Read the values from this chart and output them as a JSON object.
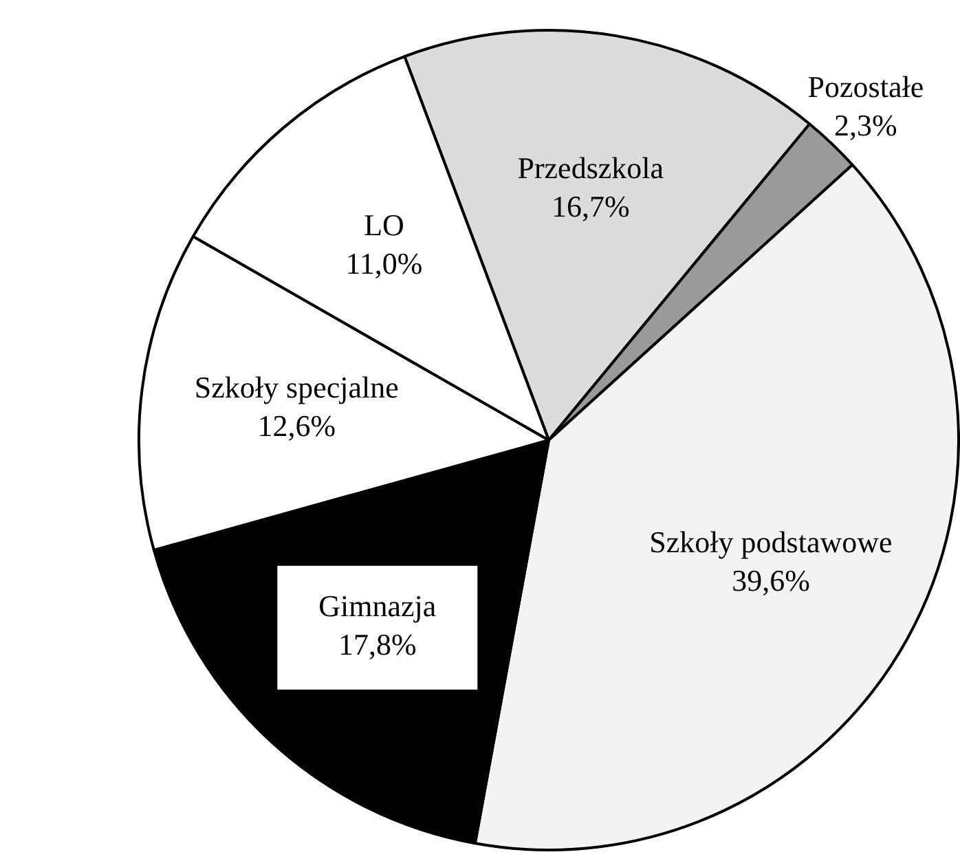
{
  "chart_data": {
    "type": "pie",
    "categories": [
      "Przedszkola",
      "Pozostałe",
      "Szkoły podstawowe",
      "Gimnazja",
      "Szkoły specjalne",
      "LO"
    ],
    "values": [
      16.7,
      2.3,
      39.6,
      17.8,
      12.6,
      11.0
    ],
    "colors": [
      "#dcdcdc",
      "#9a9a9a",
      "#f3f3f3",
      "#000000",
      "#ffffff",
      "#ffffff"
    ],
    "value_labels": [
      "16,7%",
      "2,3%",
      "39,6%",
      "17,8%",
      "12,6%",
      "11,0%"
    ],
    "legend": false
  }
}
